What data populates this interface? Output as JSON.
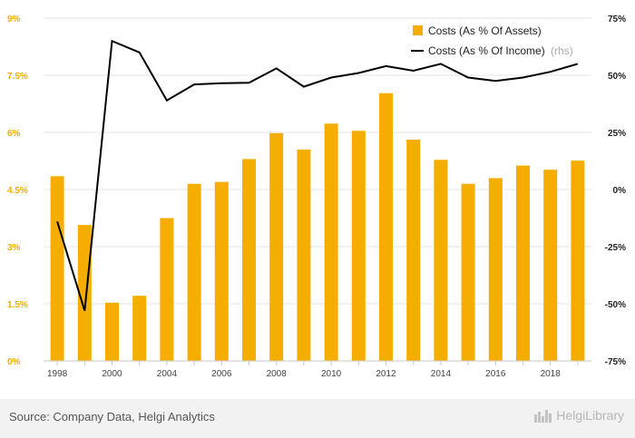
{
  "chart_data": {
    "type": "bar+line",
    "categories": [
      "1998",
      "1999",
      "2000",
      "2001",
      "2004",
      "2005",
      "2006",
      "2007",
      "2008",
      "2009",
      "2010",
      "2011",
      "2012",
      "2013",
      "2014",
      "2015",
      "2016",
      "2017",
      "2018",
      "2019"
    ],
    "x_tick_labels": [
      "1998",
      "",
      "2000",
      "",
      "2004",
      "",
      "2006",
      "",
      "2008",
      "",
      "2010",
      "",
      "2012",
      "",
      "2014",
      "",
      "2016",
      "",
      "2018",
      ""
    ],
    "series": [
      {
        "name": "Costs (As % Of Assets)",
        "type": "bar",
        "axis": "left",
        "color": "#f5ad00",
        "values": [
          4.85,
          3.57,
          1.53,
          1.71,
          3.75,
          4.65,
          4.7,
          5.3,
          5.98,
          5.55,
          6.23,
          6.04,
          7.03,
          5.81,
          5.28,
          4.65,
          4.8,
          5.13,
          5.02,
          5.26
        ]
      },
      {
        "name": "Costs (As % Of Income)",
        "legend_suffix": "(rhs)",
        "type": "line",
        "axis": "right",
        "color": "#000000",
        "values": [
          -14,
          -53,
          65,
          60,
          39,
          46,
          46.5,
          46.7,
          53,
          45,
          49,
          51,
          54,
          52,
          55,
          49,
          47.5,
          49,
          51.5,
          55
        ]
      }
    ],
    "left_axis": {
      "ticks": [
        "0%",
        "1.5%",
        "3%",
        "4.5%",
        "6%",
        "7.5%",
        "9%"
      ],
      "tick_values": [
        0,
        1.5,
        3,
        4.5,
        6,
        7.5,
        9
      ],
      "ylim": [
        0,
        9
      ],
      "color": "#f5ad00"
    },
    "right_axis": {
      "ticks": [
        "-75%",
        "-50%",
        "-25%",
        "0%",
        "25%",
        "50%",
        "75%"
      ],
      "tick_values": [
        -75,
        -50,
        -25,
        0,
        25,
        50,
        75
      ],
      "ylim": [
        -75,
        75
      ],
      "color": "#222222"
    },
    "grid": true,
    "legend_position": "top-right"
  },
  "footer": {
    "source": "Source: Company Data, Helgi Analytics",
    "brand": "HelgiLibrary"
  }
}
